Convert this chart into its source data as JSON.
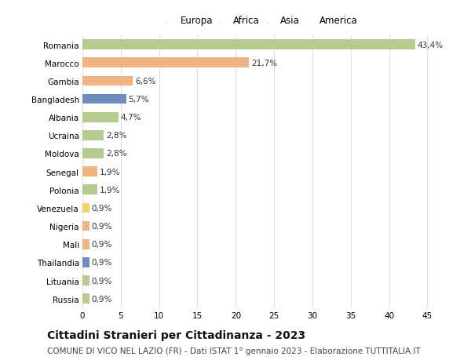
{
  "countries": [
    "Romania",
    "Marocco",
    "Gambia",
    "Bangladesh",
    "Albania",
    "Ucraina",
    "Moldova",
    "Senegal",
    "Polonia",
    "Venezuela",
    "Nigeria",
    "Mali",
    "Thailandia",
    "Lituania",
    "Russia"
  ],
  "values": [
    43.4,
    21.7,
    6.6,
    5.7,
    4.7,
    2.8,
    2.8,
    1.9,
    1.9,
    0.9,
    0.9,
    0.9,
    0.9,
    0.9,
    0.9
  ],
  "labels": [
    "43,4%",
    "21,7%",
    "6,6%",
    "5,7%",
    "4,7%",
    "2,8%",
    "2,8%",
    "1,9%",
    "1,9%",
    "0,9%",
    "0,9%",
    "0,9%",
    "0,9%",
    "0,9%",
    "0,9%"
  ],
  "continents": [
    "Europa",
    "Africa",
    "Africa",
    "Asia",
    "Europa",
    "Europa",
    "Europa",
    "Africa",
    "Europa",
    "America",
    "Africa",
    "Africa",
    "Asia",
    "Europa",
    "Europa"
  ],
  "continent_colors": {
    "Europa": "#b5cc8e",
    "Africa": "#f0b482",
    "Asia": "#6e8fbe",
    "America": "#f5d16e"
  },
  "legend_order": [
    "Europa",
    "Africa",
    "Asia",
    "America"
  ],
  "title": "Cittadini Stranieri per Cittadinanza - 2023",
  "subtitle": "COMUNE DI VICO NEL LAZIO (FR) - Dati ISTAT 1° gennaio 2023 - Elaborazione TUTTITALIA.IT",
  "xlim": [
    0,
    47
  ],
  "xticks": [
    0,
    5,
    10,
    15,
    20,
    25,
    30,
    35,
    40,
    45
  ],
  "background_color": "#ffffff",
  "grid_color": "#e0e0e0",
  "bar_height": 0.55,
  "title_fontsize": 10,
  "subtitle_fontsize": 7.5,
  "label_fontsize": 7.5,
  "tick_fontsize": 7.5,
  "legend_fontsize": 8.5
}
